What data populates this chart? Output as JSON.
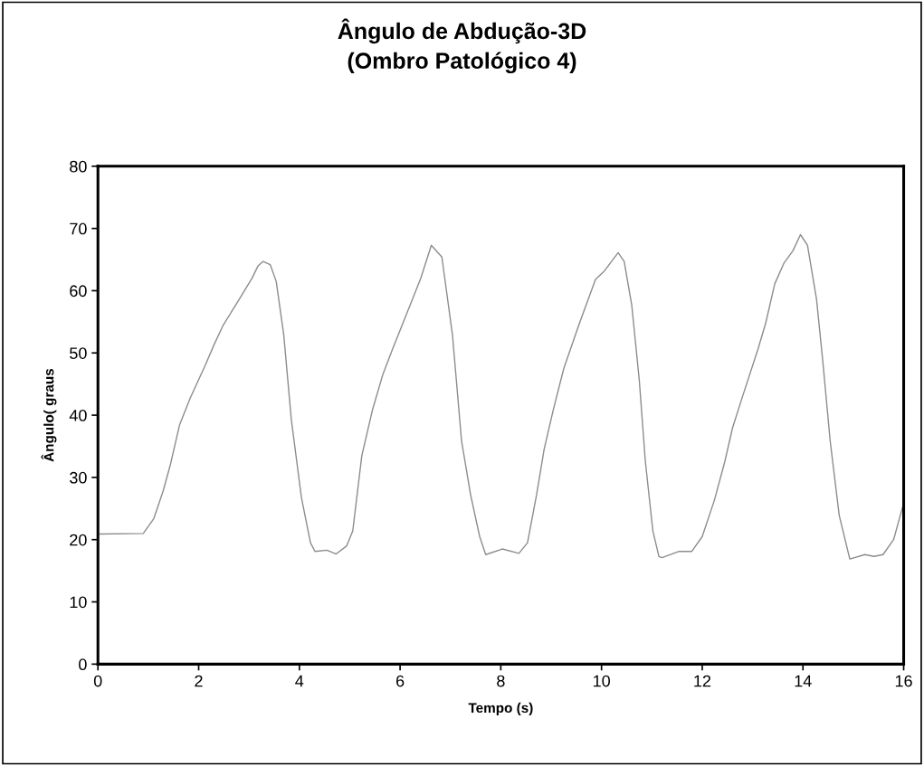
{
  "chart_data": {
    "type": "line",
    "title": "Ângulo de Abdução-3D\n(Ombro Patológico 4)",
    "xlabel": "Tempo (s)",
    "ylabel": "Ângulo( graus",
    "xlim": [
      0,
      16
    ],
    "xticks": [
      0,
      2,
      4,
      6,
      8,
      10,
      12,
      14,
      16
    ],
    "ylim": [
      0,
      80
    ],
    "yticks": [
      0,
      10,
      20,
      30,
      40,
      50,
      60,
      70,
      80
    ],
    "grid": false,
    "legend": false,
    "marker": "none",
    "line_style": "solid",
    "series": [
      {
        "color": "#8c8c8c",
        "x": [
          0.04,
          0.9,
          1.11,
          1.29,
          1.44,
          1.62,
          1.83,
          2.13,
          2.31,
          2.49,
          2.79,
          3.06,
          3.18,
          3.28,
          3.42,
          3.54,
          3.69,
          3.84,
          4.04,
          4.22,
          4.31,
          4.55,
          4.73,
          4.94,
          5.06,
          5.24,
          5.45,
          5.66,
          5.84,
          6.2,
          6.41,
          6.62,
          6.83,
          7.04,
          7.22,
          7.4,
          7.58,
          7.7,
          8.03,
          8.36,
          8.53,
          8.71,
          8.86,
          9.04,
          9.25,
          9.55,
          9.88,
          10.06,
          10.33,
          10.45,
          10.6,
          10.75,
          10.87,
          11.02,
          11.14,
          11.2,
          11.53,
          11.79,
          12.0,
          12.24,
          12.45,
          12.6,
          12.78,
          13.11,
          13.26,
          13.44,
          13.62,
          13.8,
          13.95,
          14.09,
          14.27,
          14.39,
          14.54,
          14.72,
          14.93,
          15.23,
          15.41,
          15.59,
          15.8,
          15.98
        ],
        "values": [
          20.9,
          21.0,
          23.4,
          27.7,
          32.1,
          38.4,
          42.7,
          48.0,
          51.4,
          54.5,
          58.4,
          62.0,
          64.0,
          64.7,
          64.2,
          61.5,
          52.9,
          39.3,
          26.8,
          19.5,
          18.1,
          18.3,
          17.7,
          19.0,
          21.4,
          33.5,
          40.8,
          46.6,
          50.4,
          57.7,
          62.0,
          67.3,
          65.4,
          52.9,
          35.9,
          27.2,
          20.5,
          17.6,
          18.5,
          17.8,
          19.5,
          27.2,
          34.5,
          40.8,
          47.5,
          54.5,
          61.8,
          63.2,
          66.1,
          64.7,
          57.7,
          45.6,
          32.6,
          21.4,
          17.3,
          17.1,
          18.1,
          18.1,
          20.5,
          26.3,
          32.6,
          37.9,
          42.5,
          50.7,
          54.8,
          61.1,
          64.4,
          66.4,
          69.0,
          67.3,
          58.6,
          49.0,
          35.9,
          23.9,
          16.9,
          17.6,
          17.3,
          17.6,
          20.0,
          25.3
        ]
      }
    ]
  }
}
